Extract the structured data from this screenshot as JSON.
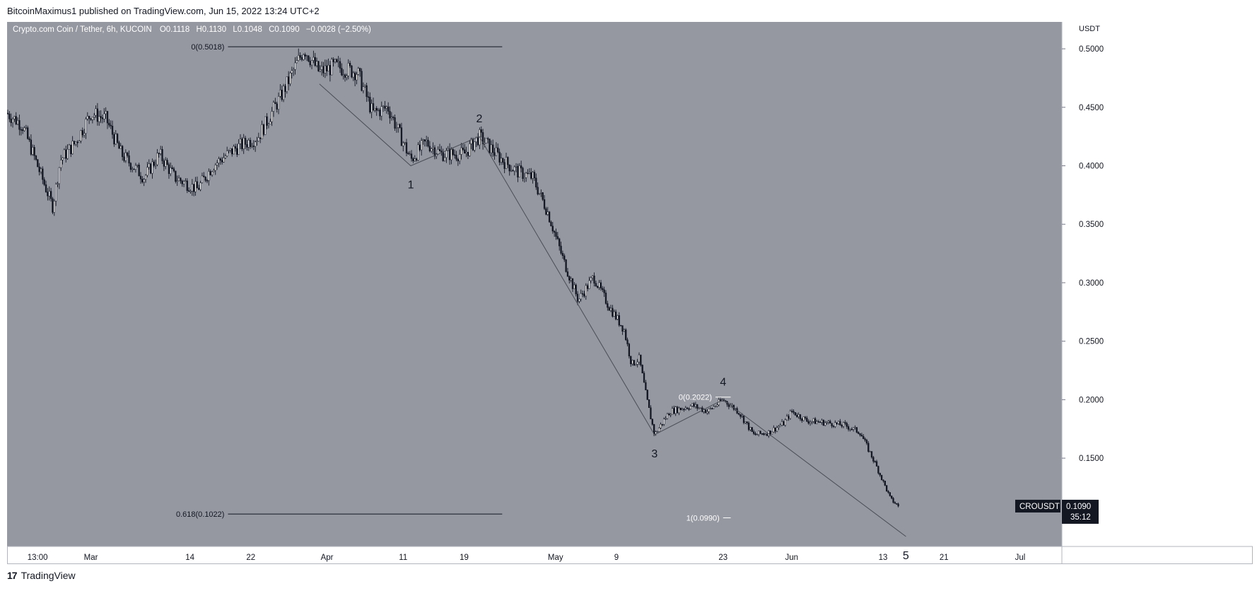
{
  "header": {
    "published": "BitcoinMaximus1 published on TradingView.com, Jun 15, 2022 13:24 UTC+2"
  },
  "footer": {
    "brand": "TradingView",
    "logo_glyph": "17"
  },
  "colors": {
    "background": "#ffffff",
    "plot_bg": "#9598a1",
    "candle": "#131722",
    "text": "#131722",
    "price_tag_bg": "#131722",
    "price_tag_text": "#ffffff"
  },
  "chart_data": {
    "type": "candlestick",
    "symbol_line": {
      "title": "Crypto.com Coin / Tether, 6h, KUCOIN",
      "o_label": "O",
      "o_value": "0.1118",
      "h_label": "H",
      "h_value": "0.1130",
      "l_label": "L",
      "l_value": "0.1048",
      "c_label": "C",
      "c_value": "0.1090",
      "change": "−0.0028 (−2.50%)"
    },
    "price_axis": {
      "unit": "USDT",
      "ylim": [
        0.0745,
        0.523
      ],
      "ticks": [
        {
          "value": 0.5,
          "label": "0.5000"
        },
        {
          "value": 0.45,
          "label": "0.4500"
        },
        {
          "value": 0.4,
          "label": "0.4000"
        },
        {
          "value": 0.35,
          "label": "0.3500"
        },
        {
          "value": 0.3,
          "label": "0.3000"
        },
        {
          "value": 0.25,
          "label": "0.2500"
        },
        {
          "value": 0.2,
          "label": "0.2000"
        },
        {
          "value": 0.15,
          "label": "0.1500"
        }
      ]
    },
    "time_axis": {
      "ticks": [
        {
          "date": "2022-02-22",
          "label": "13:00"
        },
        {
          "date": "2022-03-01",
          "label": "Mar"
        },
        {
          "date": "2022-03-14",
          "label": "14"
        },
        {
          "date": "2022-03-22",
          "label": "22"
        },
        {
          "date": "2022-04-01",
          "label": "Apr"
        },
        {
          "date": "2022-04-11",
          "label": "11"
        },
        {
          "date": "2022-04-19",
          "label": "19"
        },
        {
          "date": "2022-05-01",
          "label": "May"
        },
        {
          "date": "2022-05-09",
          "label": "9"
        },
        {
          "date": "2022-05-23",
          "label": "23"
        },
        {
          "date": "2022-06-01",
          "label": "Jun"
        },
        {
          "date": "2022-06-13",
          "label": "13"
        },
        {
          "date": "2022-06-21",
          "label": "21"
        },
        {
          "date": "2022-07-01",
          "label": "Jul"
        }
      ]
    },
    "price_path": [
      {
        "date": "2022-02-18",
        "price": 0.445
      },
      {
        "date": "2022-02-20",
        "price": 0.435
      },
      {
        "date": "2022-02-22",
        "price": 0.4
      },
      {
        "date": "2022-02-24",
        "price": 0.365
      },
      {
        "date": "2022-02-25",
        "price": 0.405
      },
      {
        "date": "2022-02-27",
        "price": 0.42
      },
      {
        "date": "2022-03-01",
        "price": 0.445
      },
      {
        "date": "2022-03-03",
        "price": 0.44
      },
      {
        "date": "2022-03-05",
        "price": 0.41
      },
      {
        "date": "2022-03-08",
        "price": 0.39
      },
      {
        "date": "2022-03-10",
        "price": 0.41
      },
      {
        "date": "2022-03-12",
        "price": 0.39
      },
      {
        "date": "2022-03-15",
        "price": 0.38
      },
      {
        "date": "2022-03-17",
        "price": 0.4
      },
      {
        "date": "2022-03-20",
        "price": 0.415
      },
      {
        "date": "2022-03-23",
        "price": 0.425
      },
      {
        "date": "2022-03-26",
        "price": 0.46
      },
      {
        "date": "2022-03-29",
        "price": 0.5
      },
      {
        "date": "2022-03-31",
        "price": 0.48
      },
      {
        "date": "2022-04-02",
        "price": 0.485
      },
      {
        "date": "2022-04-05",
        "price": 0.48
      },
      {
        "date": "2022-04-07",
        "price": 0.445
      },
      {
        "date": "2022-04-09",
        "price": 0.45
      },
      {
        "date": "2022-04-12",
        "price": 0.405
      },
      {
        "date": "2022-04-14",
        "price": 0.42
      },
      {
        "date": "2022-04-16",
        "price": 0.41
      },
      {
        "date": "2022-04-19",
        "price": 0.41
      },
      {
        "date": "2022-04-21",
        "price": 0.425
      },
      {
        "date": "2022-04-24",
        "price": 0.405
      },
      {
        "date": "2022-04-26",
        "price": 0.395
      },
      {
        "date": "2022-04-28",
        "price": 0.39
      },
      {
        "date": "2022-04-30",
        "price": 0.36
      },
      {
        "date": "2022-05-02",
        "price": 0.32
      },
      {
        "date": "2022-05-04",
        "price": 0.285
      },
      {
        "date": "2022-05-06",
        "price": 0.305
      },
      {
        "date": "2022-05-08",
        "price": 0.28
      },
      {
        "date": "2022-05-10",
        "price": 0.26
      },
      {
        "date": "2022-05-11",
        "price": 0.23
      },
      {
        "date": "2022-05-12",
        "price": 0.235
      },
      {
        "date": "2022-05-13",
        "price": 0.2
      },
      {
        "date": "2022-05-14",
        "price": 0.17
      },
      {
        "date": "2022-05-16",
        "price": 0.19
      },
      {
        "date": "2022-05-19",
        "price": 0.195
      },
      {
        "date": "2022-05-21",
        "price": 0.19
      },
      {
        "date": "2022-05-23",
        "price": 0.2
      },
      {
        "date": "2022-05-25",
        "price": 0.19
      },
      {
        "date": "2022-05-27",
        "price": 0.17
      },
      {
        "date": "2022-05-29",
        "price": 0.172
      },
      {
        "date": "2022-05-31",
        "price": 0.18
      },
      {
        "date": "2022-06-01",
        "price": 0.19
      },
      {
        "date": "2022-06-03",
        "price": 0.182
      },
      {
        "date": "2022-06-06",
        "price": 0.18
      },
      {
        "date": "2022-06-08",
        "price": 0.178
      },
      {
        "date": "2022-06-10",
        "price": 0.172
      },
      {
        "date": "2022-06-12",
        "price": 0.145
      },
      {
        "date": "2022-06-13",
        "price": 0.13
      },
      {
        "date": "2022-06-14",
        "price": 0.115
      },
      {
        "date": "2022-06-15",
        "price": 0.109
      }
    ],
    "fib_levels": [
      {
        "label": "0(0.5018)",
        "value": 0.5018,
        "from": "2022-03-19",
        "to": "2022-04-24"
      },
      {
        "label": "0.618(0.1022)",
        "value": 0.1022,
        "from": "2022-03-19",
        "to": "2022-04-24"
      },
      {
        "label": "0(0.2022)",
        "value": 0.2022,
        "from": "2022-05-22",
        "to": "2022-05-24"
      },
      {
        "label": "1(0.0990)",
        "value": 0.099,
        "from": "2022-05-23",
        "to": "2022-05-24"
      }
    ],
    "wave_path": [
      {
        "date": "2022-03-31",
        "price": 0.47
      },
      {
        "date": "2022-04-12",
        "price": 0.4
      },
      {
        "date": "2022-04-21",
        "price": 0.425
      },
      {
        "date": "2022-05-14",
        "price": 0.17
      },
      {
        "date": "2022-05-23",
        "price": 0.2
      },
      {
        "date": "2022-06-16",
        "price": 0.083
      }
    ],
    "wave_labels": [
      {
        "label": "1",
        "date": "2022-04-12",
        "price": 0.4,
        "pos": "below"
      },
      {
        "label": "2",
        "date": "2022-04-21",
        "price": 0.425,
        "pos": "above"
      },
      {
        "label": "3",
        "date": "2022-05-14",
        "price": 0.17,
        "pos": "below"
      },
      {
        "label": "4",
        "date": "2022-05-23",
        "price": 0.2,
        "pos": "above"
      },
      {
        "label": "5",
        "date": "2022-06-16",
        "price": 0.083,
        "pos": "below"
      }
    ],
    "last_price": {
      "symbol": "CROUSDT",
      "value": "0.1090",
      "countdown": "35:12",
      "price": 0.109
    }
  }
}
